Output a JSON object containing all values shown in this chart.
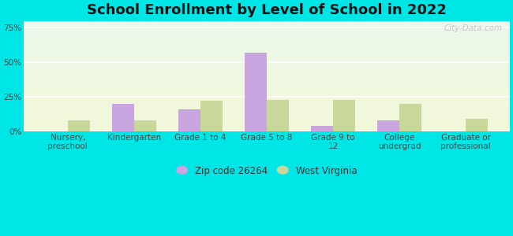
{
  "title": "School Enrollment by Level of School in 2022",
  "categories": [
    "Nursery,\npreschool",
    "Kindergarten",
    "Grade 1 to 4",
    "Grade 5 to 8",
    "Grade 9 to\n12",
    "College\nundergrad",
    "Graduate or\nprofessional"
  ],
  "zip_values": [
    0.0,
    20.0,
    16.0,
    57.0,
    4.0,
    8.0,
    0.0
  ],
  "wv_values": [
    8.0,
    8.0,
    22.0,
    23.0,
    23.0,
    20.0,
    9.0
  ],
  "zip_color": "#c9a6e0",
  "wv_color": "#c8d89a",
  "zip_label": "Zip code 26264",
  "wv_label": "West Virginia",
  "bg_outer": "#00e5e5",
  "bg_plot_top": "#f0faf0",
  "bg_plot_bottom": "#f5f8e0",
  "ylim": [
    0,
    80
  ],
  "yticks": [
    0,
    25,
    50,
    75
  ],
  "ytick_labels": [
    "0%",
    "25%",
    "50%",
    "75%"
  ],
  "title_fontsize": 13,
  "tick_fontsize": 7.5,
  "legend_fontsize": 8.5,
  "bar_width": 0.33,
  "watermark_text": "City-Data.com"
}
